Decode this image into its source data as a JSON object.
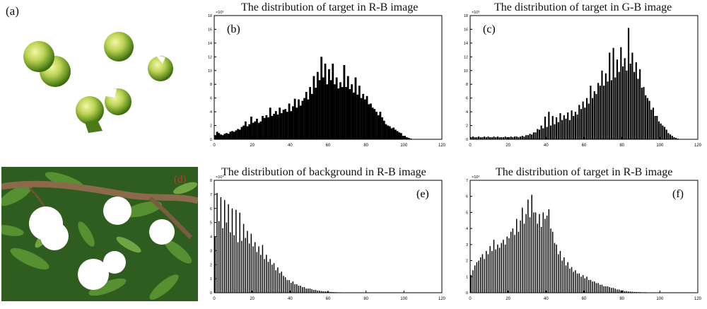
{
  "panels": {
    "a": "(a)",
    "d": "(d)"
  },
  "chart_data": [
    {
      "id": "b",
      "type": "bar",
      "label": "(b)",
      "title": "The distribution of target in R-B image",
      "xlim": [
        0,
        120
      ],
      "ylim": [
        0,
        18
      ],
      "xticks": [
        0,
        20,
        40,
        60,
        80,
        100,
        120
      ],
      "yticks": [
        0,
        2,
        4,
        6,
        8,
        10,
        12,
        14,
        16,
        18
      ],
      "y_exponent": "×10³",
      "style": "solid",
      "x": [
        0,
        1,
        2,
        3,
        4,
        5,
        6,
        7,
        8,
        9,
        10,
        11,
        12,
        13,
        14,
        15,
        16,
        17,
        18,
        19,
        20,
        21,
        22,
        23,
        24,
        25,
        26,
        27,
        28,
        29,
        30,
        31,
        32,
        33,
        34,
        35,
        36,
        37,
        38,
        39,
        40,
        41,
        42,
        43,
        44,
        45,
        46,
        47,
        48,
        49,
        50,
        51,
        52,
        53,
        54,
        55,
        56,
        57,
        58,
        59,
        60,
        61,
        62,
        63,
        64,
        65,
        66,
        67,
        68,
        69,
        70,
        71,
        72,
        73,
        74,
        75,
        76,
        77,
        78,
        79,
        80,
        81,
        82,
        83,
        84,
        85,
        86,
        87,
        88,
        89,
        90,
        91,
        92,
        93,
        94,
        95,
        96,
        97,
        98,
        99,
        100,
        101,
        102,
        103,
        104,
        105
      ],
      "values": [
        0.6,
        1.1,
        0.9,
        0.7,
        0.6,
        0.8,
        0.9,
        0.8,
        1.1,
        1.2,
        1.1,
        1.3,
        1.5,
        1.4,
        1.8,
        2.0,
        2.6,
        1.9,
        2.2,
        3.3,
        2.4,
        2.6,
        3.0,
        2.4,
        2.6,
        3.4,
        3.1,
        3.5,
        3.2,
        4.6,
        3.4,
        3.7,
        4.1,
        3.6,
        4.6,
        3.8,
        4.3,
        4.4,
        4.0,
        5.2,
        4.1,
        4.8,
        5.9,
        4.6,
        5.8,
        4.9,
        5.6,
        6.0,
        6.9,
        5.8,
        7.6,
        6.6,
        9.2,
        7.5,
        9.8,
        8.6,
        12.0,
        9.0,
        11.0,
        8.0,
        10.2,
        8.6,
        11.0,
        8.0,
        9.0,
        7.4,
        8.3,
        7.6,
        10.8,
        7.6,
        9.2,
        7.3,
        8.0,
        6.8,
        9.0,
        6.5,
        7.8,
        6.0,
        6.6,
        5.8,
        6.3,
        5.1,
        5.2,
        4.6,
        4.4,
        4.0,
        3.5,
        4.0,
        3.2,
        2.7,
        2.2,
        2.0,
        1.9,
        1.6,
        1.7,
        1.4,
        1.2,
        1.0,
        0.9,
        0.5,
        0.5,
        0.3,
        0.2,
        0.1,
        0.05,
        0.02
      ]
    },
    {
      "id": "c",
      "type": "bar",
      "label": "(c)",
      "title": "The distribution of target in G-B image",
      "xlim": [
        0,
        120
      ],
      "ylim": [
        0,
        18
      ],
      "xticks": [
        0,
        20,
        40,
        60,
        80,
        100,
        120
      ],
      "yticks": [
        0,
        2,
        4,
        6,
        8,
        10,
        12,
        14,
        16,
        18
      ],
      "y_exponent": "×10³",
      "style": "spiky",
      "x": [
        0,
        1,
        2,
        3,
        4,
        5,
        6,
        7,
        8,
        9,
        10,
        11,
        12,
        13,
        14,
        15,
        16,
        17,
        18,
        19,
        20,
        21,
        22,
        23,
        24,
        25,
        26,
        27,
        28,
        29,
        30,
        31,
        32,
        33,
        34,
        35,
        36,
        37,
        38,
        39,
        40,
        41,
        42,
        43,
        44,
        45,
        46,
        47,
        48,
        49,
        50,
        51,
        52,
        53,
        54,
        55,
        56,
        57,
        58,
        59,
        60,
        61,
        62,
        63,
        64,
        65,
        66,
        67,
        68,
        69,
        70,
        71,
        72,
        73,
        74,
        75,
        76,
        77,
        78,
        79,
        80,
        81,
        82,
        83,
        84,
        85,
        86,
        87,
        88,
        89,
        90,
        91,
        92,
        93,
        94,
        95,
        96,
        97,
        98,
        99,
        100,
        101,
        102,
        103,
        104,
        105,
        106,
        107,
        108,
        109,
        110,
        111,
        112,
        113,
        114,
        115,
        116,
        117,
        118,
        119
      ],
      "values": [
        0.3,
        0.4,
        0.3,
        0.3,
        0.4,
        0.3,
        0.3,
        0.4,
        0.3,
        0.4,
        0.3,
        0.3,
        0.4,
        0.3,
        0.4,
        0.3,
        0.3,
        0.3,
        0.4,
        0.3,
        0.3,
        0.4,
        0.3,
        0.4,
        0.4,
        0.3,
        0.4,
        0.5,
        0.4,
        0.6,
        0.6,
        0.8,
        0.7,
        1.0,
        1.0,
        1.5,
        1.4,
        2.0,
        1.6,
        3.3,
        1.8,
        4.0,
        2.0,
        3.4,
        2.2,
        3.2,
        2.5,
        3.8,
        2.8,
        3.5,
        3.0,
        3.9,
        2.8,
        4.2,
        3.4,
        4.0,
        3.6,
        5.0,
        4.4,
        5.5,
        4.6,
        6.0,
        5.2,
        7.8,
        6.0,
        7.0,
        6.6,
        8.2,
        7.8,
        10.0,
        7.8,
        9.6,
        8.4,
        12.6,
        8.6,
        13.3,
        9.0,
        11.6,
        9.8,
        13.4,
        10.6,
        11.8,
        10.0,
        16.2,
        11.0,
        12.6,
        9.8,
        11.2,
        8.8,
        10.2,
        7.5,
        7.6,
        6.4,
        6.0,
        5.6,
        4.3,
        4.6,
        3.4,
        3.4,
        2.6,
        2.3,
        2.0,
        1.8,
        1.4,
        0.9,
        0.7,
        0.5,
        0.3,
        0.2,
        0.1,
        0.05,
        0.03,
        0,
        0,
        0,
        0,
        0,
        0,
        0,
        0
      ]
    },
    {
      "id": "e",
      "type": "bar",
      "label": "(e)",
      "title": "The distribution of background in R-B image",
      "xlim": [
        0,
        120
      ],
      "ylim": [
        0,
        8
      ],
      "xticks": [
        0,
        20,
        40,
        60,
        80,
        100,
        120
      ],
      "yticks": [
        0,
        1,
        2,
        3,
        4,
        5,
        6,
        7,
        8
      ],
      "y_exponent": "×10⁴",
      "style": "comb",
      "x": [
        0,
        1,
        2,
        3,
        4,
        5,
        6,
        7,
        8,
        9,
        10,
        11,
        12,
        13,
        14,
        15,
        16,
        17,
        18,
        19,
        20,
        21,
        22,
        23,
        24,
        25,
        26,
        27,
        28,
        29,
        30,
        31,
        32,
        33,
        34,
        35,
        36,
        37,
        38,
        39,
        40,
        41,
        42,
        43,
        44,
        45,
        46,
        47,
        48,
        49,
        50,
        51,
        52,
        53,
        54,
        55,
        56,
        57,
        58,
        59,
        60,
        61,
        62,
        63,
        64,
        65,
        66,
        67,
        68,
        69,
        70,
        71,
        72,
        73,
        74,
        75,
        76,
        77,
        78,
        79,
        80,
        81,
        82,
        83,
        84,
        85,
        86,
        87,
        88,
        89,
        90,
        91,
        92,
        93,
        94,
        95,
        96,
        97,
        98,
        99,
        100
      ],
      "values": [
        4.0,
        7.1,
        5.1,
        6.8,
        4.6,
        6.6,
        5.0,
        6.3,
        4.3,
        6.0,
        4.1,
        5.9,
        3.6,
        5.7,
        3.7,
        4.9,
        3.9,
        4.4,
        3.5,
        4.2,
        3.3,
        3.6,
        2.9,
        3.3,
        2.7,
        3.4,
        2.4,
        2.7,
        2.2,
        2.4,
        2.0,
        2.1,
        1.6,
        1.8,
        1.4,
        1.5,
        1.2,
        1.1,
        0.9,
        0.9,
        0.7,
        0.8,
        0.6,
        0.6,
        0.5,
        0.5,
        0.4,
        0.4,
        0.3,
        0.3,
        0.3,
        0.25,
        0.2,
        0.2,
        0.15,
        0.15,
        0.12,
        0.1,
        0.1,
        0.08,
        0.07,
        0.06,
        0.05,
        0.04,
        0.04,
        0.03,
        0.03,
        0.02,
        0.02,
        0.02,
        0.02,
        0.02,
        0.02,
        0.02,
        0.02,
        0.02,
        0.02,
        0.02,
        0.02,
        0.02,
        0.02,
        0.02,
        0.02,
        0.02,
        0.02,
        0.02,
        0.02,
        0.02,
        0.02,
        0.02,
        0.02,
        0.02,
        0.02,
        0.02,
        0.02,
        0.02,
        0.02,
        0.02,
        0.02,
        0.02,
        0.02
      ]
    },
    {
      "id": "f",
      "type": "bar",
      "label": "(f)",
      "title": "The distribution of target in R-B image",
      "xlim": [
        0,
        120
      ],
      "ylim": [
        0,
        7
      ],
      "xticks": [
        0,
        20,
        40,
        60,
        80,
        100,
        120
      ],
      "yticks": [
        0,
        1,
        2,
        3,
        4,
        5,
        6,
        7
      ],
      "y_exponent": "×10³",
      "style": "comb",
      "x": [
        0,
        1,
        2,
        3,
        4,
        5,
        6,
        7,
        8,
        9,
        10,
        11,
        12,
        13,
        14,
        15,
        16,
        17,
        18,
        19,
        20,
        21,
        22,
        23,
        24,
        25,
        26,
        27,
        28,
        29,
        30,
        31,
        32,
        33,
        34,
        35,
        36,
        37,
        38,
        39,
        40,
        41,
        42,
        43,
        44,
        45,
        46,
        47,
        48,
        49,
        50,
        51,
        52,
        53,
        54,
        55,
        56,
        57,
        58,
        59,
        60,
        61,
        62,
        63,
        64,
        65,
        66,
        67,
        68,
        69,
        70,
        71,
        72,
        73,
        74,
        75,
        76,
        77,
        78,
        79,
        80,
        81,
        82,
        83,
        84,
        85,
        86,
        87,
        88,
        89,
        90,
        91,
        92,
        93,
        94,
        95,
        96,
        97,
        98,
        99,
        100,
        101
      ],
      "values": [
        1.1,
        1.4,
        1.7,
        1.9,
        2.0,
        2.2,
        2.4,
        2.1,
        2.6,
        2.4,
        2.9,
        2.6,
        3.3,
        2.7,
        3.0,
        2.8,
        3.1,
        3.3,
        3.0,
        3.5,
        3.4,
        3.8,
        4.0,
        3.6,
        4.6,
        3.8,
        4.5,
        5.3,
        4.3,
        4.9,
        5.8,
        4.7,
        6.1,
        5.0,
        5.0,
        4.3,
        4.9,
        4.1,
        5.0,
        4.6,
        4.8,
        5.2,
        4.0,
        3.8,
        3.1,
        3.0,
        2.4,
        2.6,
        2.0,
        2.2,
        1.7,
        1.9,
        1.5,
        1.6,
        1.3,
        1.4,
        1.2,
        1.2,
        1.0,
        1.1,
        0.9,
        1.0,
        0.8,
        0.8,
        0.7,
        0.7,
        0.6,
        0.6,
        0.5,
        0.5,
        0.4,
        0.4,
        0.4,
        0.35,
        0.3,
        0.3,
        0.25,
        0.2,
        0.2,
        0.15,
        0.15,
        0.1,
        0.1,
        0.08,
        0.07,
        0.06,
        0.05,
        0.05,
        0.04,
        0.04,
        0.03,
        0.03,
        0.03,
        0.02,
        0.02,
        0.02,
        0.02,
        0.02,
        0.02,
        0.02,
        0.02,
        0.02
      ]
    }
  ]
}
